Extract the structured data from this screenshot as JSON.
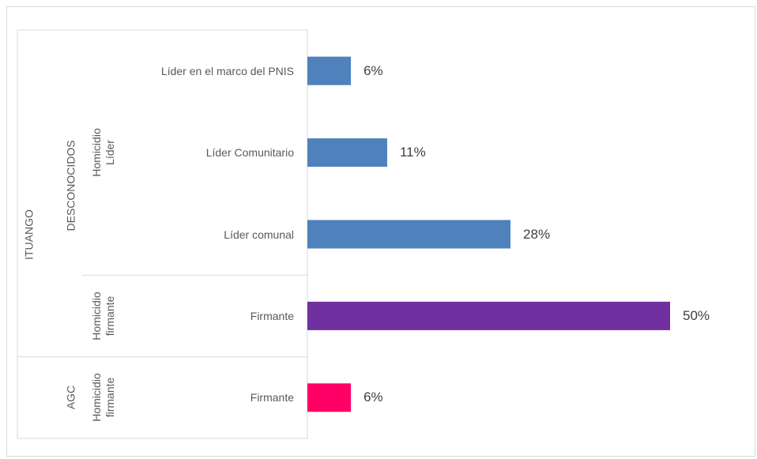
{
  "chart_data": {
    "type": "bar",
    "orientation": "horizontal",
    "groups": [
      {
        "name": "ITUANGO",
        "groups": [
          {
            "name": "DESCONOCIDOS",
            "groups": [
              {
                "name": "Homicidio Líder",
                "categories": [
                  "Líder en el marco del PNIS",
                  "Líder Comunitario",
                  "Líder comunal"
                ]
              },
              {
                "name": "Homicidio firmante",
                "categories": [
                  "Firmante"
                ]
              }
            ]
          },
          {
            "name": "AGC",
            "groups": [
              {
                "name": "Homicidio firmante",
                "categories": [
                  "Firmante"
                ]
              }
            ]
          }
        ]
      }
    ],
    "values": [
      6,
      11,
      28,
      50,
      6
    ],
    "value_labels": [
      "6%",
      "11%",
      "28%",
      "50%",
      "6%"
    ],
    "colors": [
      "#4f81bd",
      "#4f81bd",
      "#4f81bd",
      "#7030a0",
      "#ff0066"
    ]
  }
}
